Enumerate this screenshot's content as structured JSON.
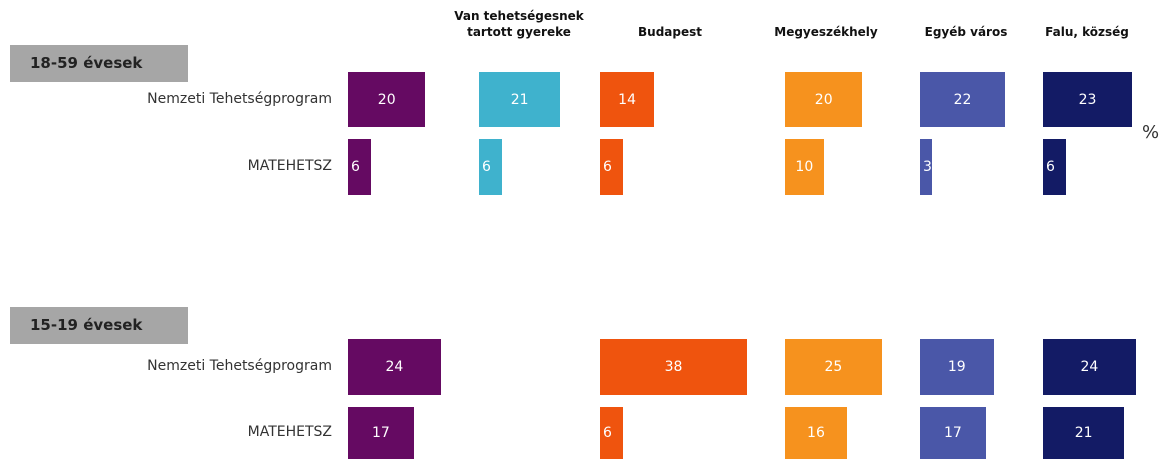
{
  "chart_data": {
    "type": "bar",
    "unit": "%",
    "categories": [
      null,
      "Van tehetségesnek tartott gyereke",
      "Budapest",
      "Megyeszékhely",
      "Egyéb város",
      "Falu, község"
    ],
    "colors": [
      "#650a62",
      "#3fb2cd",
      "#ef540e",
      "#f6921e",
      "#4a57a8",
      "#131b65"
    ],
    "groups": [
      {
        "title": "18-59 évesek",
        "series": [
          {
            "name": "Nemzeti Tehetségprogram",
            "values": [
              20,
              21,
              14,
              20,
              22,
              23
            ]
          },
          {
            "name": "MATEHETSZ",
            "values": [
              6,
              6,
              6,
              10,
              3,
              6
            ]
          }
        ]
      },
      {
        "title": "15-19 évesek",
        "series": [
          {
            "name": "Nemzeti Tehetségprogram",
            "values": [
              24,
              null,
              38,
              25,
              19,
              24
            ]
          },
          {
            "name": "MATEHETSZ",
            "values": [
              17,
              null,
              6,
              16,
              17,
              21
            ]
          }
        ]
      }
    ]
  }
}
